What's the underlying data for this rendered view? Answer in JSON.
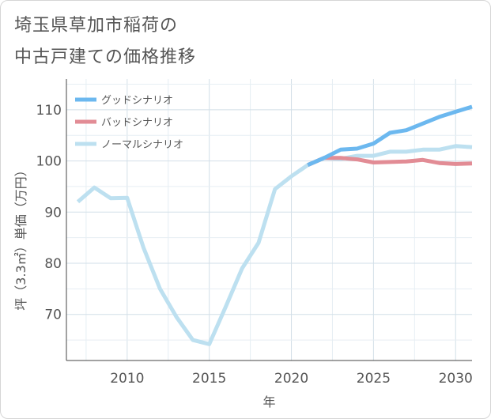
{
  "title": {
    "line1": "埼玉県草加市稲荷の",
    "line2": "中古戸建ての価格推移"
  },
  "chart_data": {
    "type": "line",
    "xlabel": "年",
    "ylabel": "坪（3.3㎡）単価（万円）",
    "xlim": [
      2006.3,
      2031
    ],
    "ylim": [
      61,
      116
    ],
    "xticks": [
      2010,
      2015,
      2020,
      2025,
      2030
    ],
    "yticks": [
      70,
      80,
      90,
      100,
      110
    ],
    "grid": true,
    "legend_position": "top-left",
    "series": [
      {
        "name": "グッドシナリオ",
        "color": "#6cb8ef",
        "x": [
          2021,
          2022,
          2023,
          2024,
          2025,
          2026,
          2027,
          2028,
          2029,
          2030,
          2031
        ],
        "y": [
          99.2,
          100.6,
          102.2,
          102.4,
          103.4,
          105.5,
          106.0,
          107.3,
          108.6,
          109.6,
          110.6
        ]
      },
      {
        "name": "バッドシナリオ",
        "color": "#e28c95",
        "x": [
          2021,
          2022,
          2023,
          2024,
          2025,
          2026,
          2027,
          2028,
          2029,
          2030,
          2031
        ],
        "y": [
          99.2,
          100.6,
          100.6,
          100.3,
          99.7,
          99.8,
          99.9,
          100.2,
          99.6,
          99.4,
          99.5
        ]
      },
      {
        "name": "ノーマルシナリオ",
        "color": "#bde0f0",
        "x": [
          2007,
          2008,
          2009,
          2010,
          2011,
          2012,
          2013,
          2014,
          2015,
          2016,
          2017,
          2018,
          2019,
          2020,
          2021,
          2022,
          2023,
          2024,
          2025,
          2026,
          2027,
          2028,
          2029,
          2030,
          2031
        ],
        "y": [
          92.0,
          94.8,
          92.7,
          92.8,
          83.0,
          75.0,
          69.5,
          65.0,
          64.2,
          71.5,
          79.0,
          84.0,
          94.5,
          97.0,
          99.2,
          100.6,
          100.4,
          101.0,
          101.0,
          101.8,
          101.8,
          102.2,
          102.2,
          102.9,
          102.7
        ]
      }
    ]
  }
}
